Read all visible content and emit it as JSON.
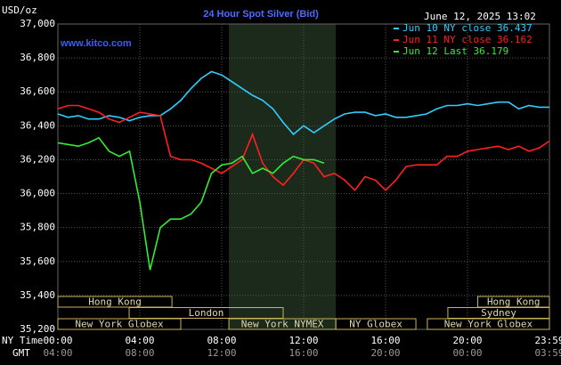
{
  "chart_data": {
    "type": "line",
    "title": "24 Hour Spot Silver (Bid)",
    "site": "www.kitco.com",
    "unit": "USD/oz",
    "timestamp": "June 12, 2025 13:02",
    "x_row_label": "NY Time",
    "x2_row_label": "GMT",
    "xlim": [
      0,
      24
    ],
    "xticks": [
      {
        "value": 0,
        "label": "00:00"
      },
      {
        "value": 4,
        "label": "04:00"
      },
      {
        "value": 8,
        "label": "08:00"
      },
      {
        "value": 12,
        "label": "12:00"
      },
      {
        "value": 16,
        "label": "16:00"
      },
      {
        "value": 20,
        "label": "20:00"
      },
      {
        "value": 24,
        "label": "23:59"
      }
    ],
    "gmt_labels": [
      "04:00",
      "08:00",
      "12:00",
      "16:00",
      "20:00",
      "00:00",
      "03:59"
    ],
    "ylim": [
      35.2,
      37.0
    ],
    "yticks": [
      {
        "value": 35.2,
        "label": "35,200"
      },
      {
        "value": 35.4,
        "label": "35,400"
      },
      {
        "value": 35.6,
        "label": "35,600"
      },
      {
        "value": 35.8,
        "label": "35,800"
      },
      {
        "value": 36.0,
        "label": "36,000"
      },
      {
        "value": 36.2,
        "label": "36,200"
      },
      {
        "value": 36.4,
        "label": "36,400"
      },
      {
        "value": 36.6,
        "label": "36,600"
      },
      {
        "value": 36.8,
        "label": "36,800"
      },
      {
        "value": 37.0,
        "label": "37,000"
      }
    ],
    "grid": true,
    "x": [
      0,
      0.5,
      1,
      1.5,
      2,
      2.5,
      3,
      3.5,
      4,
      4.5,
      5,
      5.5,
      6,
      6.5,
      7,
      7.5,
      8,
      8.5,
      9,
      9.5,
      10,
      10.5,
      11,
      11.5,
      12,
      12.5,
      13,
      13.5,
      14,
      14.5,
      15,
      15.5,
      16,
      16.5,
      17,
      17.5,
      18,
      18.5,
      19,
      19.5,
      20,
      20.5,
      21,
      21.5,
      22,
      22.5,
      23,
      23.5,
      24
    ],
    "series": [
      {
        "name": "Jun 10 NY close 36.437",
        "color": "#33ccff",
        "values": [
          36.47,
          36.45,
          36.46,
          36.44,
          36.44,
          36.46,
          36.45,
          36.43,
          36.45,
          36.46,
          36.46,
          36.5,
          36.55,
          36.62,
          36.68,
          36.72,
          36.7,
          36.66,
          36.62,
          36.58,
          36.55,
          36.5,
          36.42,
          36.35,
          36.4,
          36.36,
          36.4,
          36.44,
          36.47,
          36.48,
          36.48,
          36.46,
          36.47,
          36.45,
          36.45,
          36.46,
          36.47,
          36.5,
          36.52,
          36.52,
          36.53,
          36.52,
          36.53,
          36.54,
          36.54,
          36.5,
          36.52,
          36.51,
          36.51
        ]
      },
      {
        "name": "Jun 11 NY close 36.162",
        "color": "#ff2020",
        "values": [
          36.5,
          36.52,
          36.52,
          36.5,
          36.48,
          36.44,
          36.42,
          36.45,
          36.48,
          36.47,
          36.46,
          36.22,
          36.2,
          36.2,
          36.18,
          36.15,
          36.12,
          36.16,
          36.2,
          36.35,
          36.18,
          36.1,
          36.05,
          36.12,
          36.2,
          36.18,
          36.1,
          36.12,
          36.08,
          36.02,
          36.1,
          36.08,
          36.02,
          36.08,
          36.16,
          36.17,
          36.17,
          36.17,
          36.22,
          36.22,
          36.25,
          36.26,
          36.27,
          36.28,
          36.26,
          36.28,
          36.25,
          36.27,
          36.31
        ]
      },
      {
        "name": "Jun 12 Last 36.179",
        "color": "#33ee33",
        "values": [
          36.3,
          36.29,
          36.28,
          36.3,
          36.33,
          36.25,
          36.22,
          36.25,
          35.95,
          35.55,
          35.8,
          35.85,
          35.85,
          35.88,
          35.95,
          36.12,
          36.17,
          36.18,
          36.22,
          36.12,
          36.15,
          36.12,
          36.18,
          36.22,
          36.2,
          36.2,
          36.18,
          null,
          null,
          null,
          null,
          null,
          null,
          null,
          null,
          null,
          null,
          null,
          null,
          null,
          null,
          null,
          null,
          null,
          null,
          null,
          null,
          null,
          null
        ]
      }
    ],
    "market_rows": [
      [
        {
          "label": "Hong Kong",
          "start": 0,
          "end": 5.57
        },
        {
          "label": "Hong Kong",
          "start": 20.5,
          "end": 24
        }
      ],
      [
        {
          "label": "London",
          "start": 3.48,
          "end": 11.0
        },
        {
          "label": "Sydney",
          "start": 19.04,
          "end": 24
        }
      ],
      [
        {
          "label": "New York Globex",
          "start": 0,
          "end": 6.0
        },
        {
          "label": "New York NYMEX",
          "start": 8.35,
          "end": 13.57
        },
        {
          "label": "NY Globex",
          "start": 13.57,
          "end": 17.48
        },
        {
          "label": "New York Globex",
          "start": 18.04,
          "end": 24
        }
      ]
    ]
  }
}
